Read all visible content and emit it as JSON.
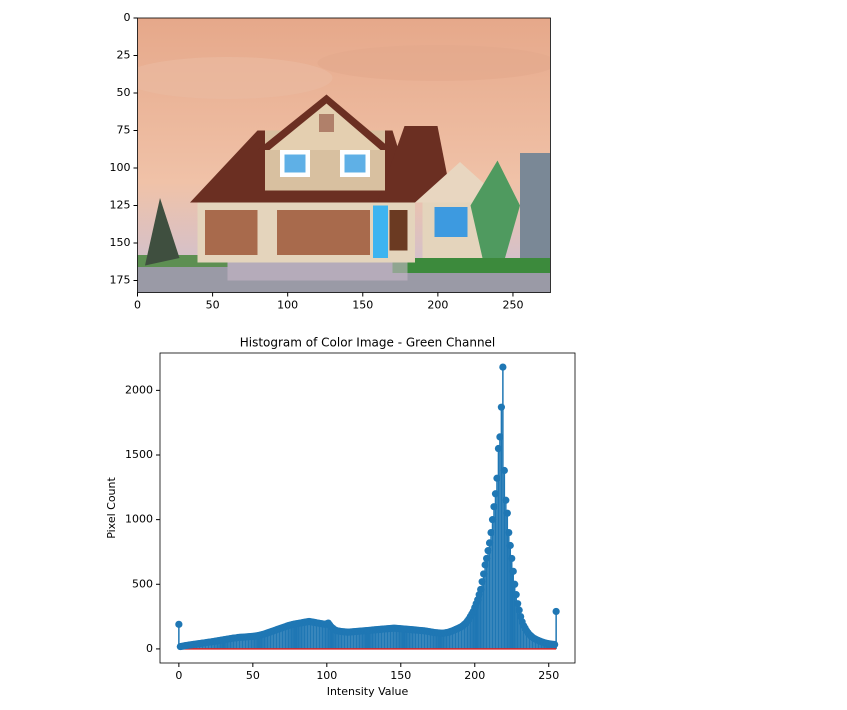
{
  "chart_data": [
    {
      "type": "image",
      "xlim": [
        0,
        275
      ],
      "ylim": [
        183,
        0
      ],
      "xticks": [
        0,
        50,
        100,
        150,
        200,
        250
      ],
      "yticks": [
        0,
        25,
        50,
        75,
        100,
        125,
        150,
        175
      ]
    },
    {
      "type": "stem",
      "title": "Histogram of Color Image - Green Channel",
      "xlabel": "Intensity Value",
      "ylabel": "Pixel Count",
      "color": "#1f77b4",
      "baseline_color": "#d62728",
      "xlim": [
        -12.75,
        267.75
      ],
      "ylim": [
        -109,
        2289
      ],
      "xticks": [
        0,
        50,
        100,
        150,
        200,
        250
      ],
      "yticks": [
        0,
        500,
        1000,
        1500,
        2000
      ],
      "x": [
        0,
        1,
        2,
        3,
        4,
        5,
        6,
        7,
        8,
        9,
        10,
        11,
        12,
        13,
        14,
        15,
        16,
        17,
        18,
        19,
        20,
        21,
        22,
        23,
        24,
        25,
        26,
        27,
        28,
        29,
        30,
        31,
        32,
        33,
        34,
        35,
        36,
        37,
        38,
        39,
        40,
        41,
        42,
        43,
        44,
        45,
        46,
        47,
        48,
        49,
        50,
        51,
        52,
        53,
        54,
        55,
        56,
        57,
        58,
        59,
        60,
        61,
        62,
        63,
        64,
        65,
        66,
        67,
        68,
        69,
        70,
        71,
        72,
        73,
        74,
        75,
        76,
        77,
        78,
        79,
        80,
        81,
        82,
        83,
        84,
        85,
        86,
        87,
        88,
        89,
        90,
        91,
        92,
        93,
        94,
        95,
        96,
        97,
        98,
        99,
        100,
        101,
        102,
        103,
        104,
        105,
        106,
        107,
        108,
        109,
        110,
        111,
        112,
        113,
        114,
        115,
        116,
        117,
        118,
        119,
        120,
        121,
        122,
        123,
        124,
        125,
        126,
        127,
        128,
        129,
        130,
        131,
        132,
        133,
        134,
        135,
        136,
        137,
        138,
        139,
        140,
        141,
        142,
        143,
        144,
        145,
        146,
        147,
        148,
        149,
        150,
        151,
        152,
        153,
        154,
        155,
        156,
        157,
        158,
        159,
        160,
        161,
        162,
        163,
        164,
        165,
        166,
        167,
        168,
        169,
        170,
        171,
        172,
        173,
        174,
        175,
        176,
        177,
        178,
        179,
        180,
        181,
        182,
        183,
        184,
        185,
        186,
        187,
        188,
        189,
        190,
        191,
        192,
        193,
        194,
        195,
        196,
        197,
        198,
        199,
        200,
        201,
        202,
        203,
        204,
        205,
        206,
        207,
        208,
        209,
        210,
        211,
        212,
        213,
        214,
        215,
        216,
        217,
        218,
        219,
        220,
        221,
        222,
        223,
        224,
        225,
        226,
        227,
        228,
        229,
        230,
        231,
        232,
        233,
        234,
        235,
        236,
        237,
        238,
        239,
        240,
        241,
        242,
        243,
        244,
        245,
        246,
        247,
        248,
        249,
        250,
        251,
        252,
        253,
        254,
        255
      ],
      "values": [
        190,
        18,
        20,
        22,
        25,
        27,
        28,
        30,
        31,
        33,
        35,
        36,
        38,
        40,
        41,
        43,
        45,
        46,
        48,
        50,
        52,
        53,
        55,
        57,
        58,
        60,
        62,
        64,
        66,
        68,
        70,
        72,
        74,
        76,
        78,
        80,
        82,
        84,
        85,
        86,
        88,
        89,
        90,
        90,
        91,
        92,
        93,
        94,
        95,
        96,
        97,
        98,
        100,
        102,
        104,
        107,
        110,
        113,
        116,
        120,
        124,
        128,
        132,
        136,
        140,
        144,
        148,
        152,
        156,
        160,
        164,
        168,
        172,
        176,
        180,
        183,
        186,
        189,
        192,
        194,
        196,
        198,
        200,
        202,
        204,
        206,
        208,
        210,
        212,
        210,
        208,
        206,
        204,
        202,
        200,
        198,
        196,
        194,
        192,
        190,
        195,
        200,
        185,
        170,
        160,
        150,
        145,
        140,
        138,
        136,
        134,
        133,
        132,
        131,
        130,
        130,
        131,
        132,
        133,
        134,
        135,
        136,
        137,
        138,
        139,
        140,
        141,
        142,
        143,
        144,
        145,
        146,
        147,
        148,
        149,
        150,
        151,
        152,
        153,
        154,
        155,
        156,
        157,
        158,
        159,
        160,
        160,
        159,
        158,
        157,
        156,
        155,
        154,
        153,
        152,
        151,
        150,
        149,
        148,
        147,
        146,
        145,
        144,
        143,
        142,
        141,
        140,
        138,
        136,
        134,
        132,
        130,
        128,
        126,
        125,
        124,
        123,
        122,
        121,
        122,
        124,
        126,
        128,
        132,
        136,
        140,
        145,
        150,
        155,
        160,
        166,
        172,
        180,
        190,
        200,
        215,
        230,
        250,
        270,
        290,
        320,
        350,
        380,
        420,
        460,
        520,
        580,
        650,
        700,
        760,
        820,
        900,
        1000,
        1100,
        1200,
        1320,
        1550,
        1640,
        1870,
        2180,
        1380,
        1150,
        1050,
        900,
        800,
        700,
        600,
        500,
        420,
        350,
        300,
        250,
        210,
        180,
        160,
        140,
        125,
        110,
        100,
        90,
        82,
        76,
        70,
        65,
        60,
        56,
        52,
        48,
        45,
        42,
        40,
        38,
        36,
        35,
        34,
        290
      ]
    }
  ]
}
